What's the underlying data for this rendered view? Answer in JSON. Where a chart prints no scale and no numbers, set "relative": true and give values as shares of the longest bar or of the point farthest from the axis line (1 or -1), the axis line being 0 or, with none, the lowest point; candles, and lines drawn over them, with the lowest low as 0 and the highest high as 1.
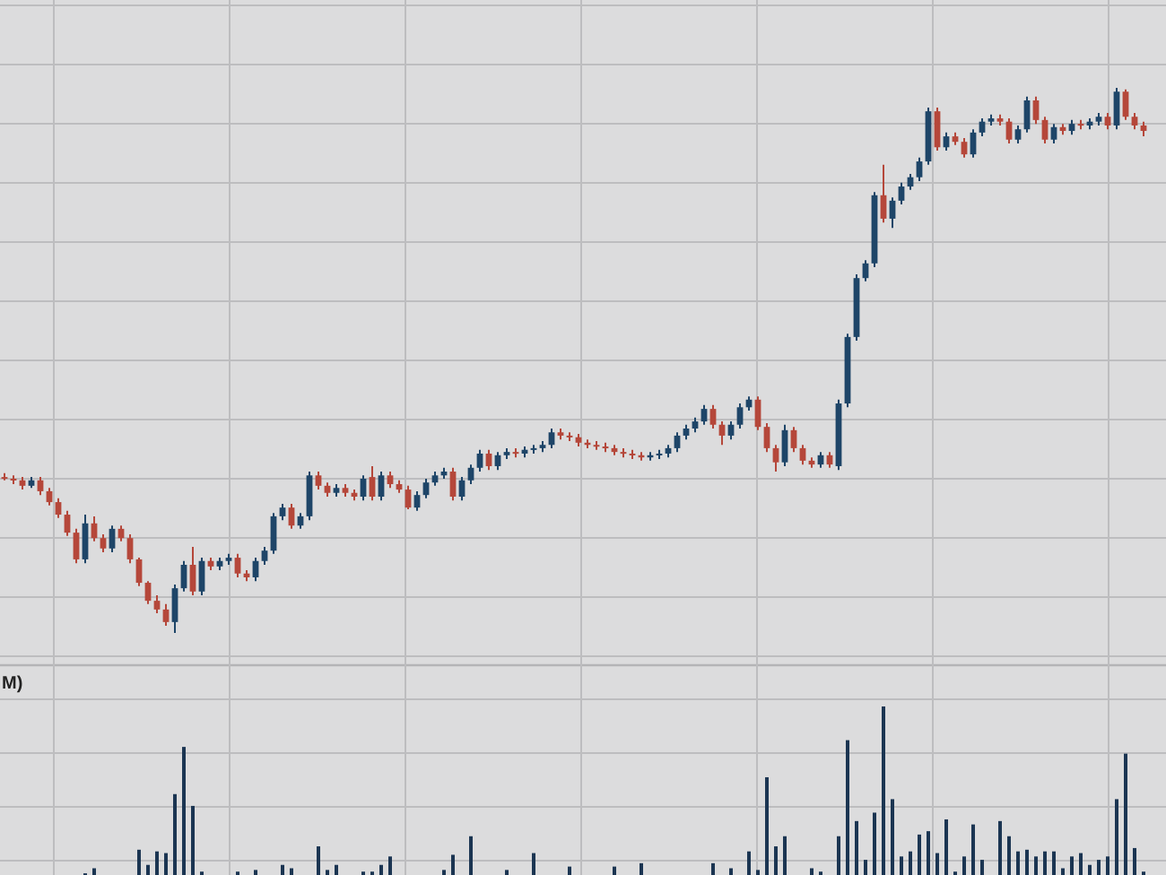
{
  "chart_data": [
    {
      "type": "candlestick",
      "relative": true,
      "grid": true,
      "tick_labels": false,
      "categories": [
        null,
        null,
        null,
        null,
        null,
        null,
        null,
        null,
        null,
        null,
        null,
        null,
        null,
        null,
        null,
        null,
        null,
        null,
        null,
        null,
        null,
        null,
        null,
        null,
        null,
        null,
        null,
        null,
        null,
        null,
        null,
        null,
        null,
        null,
        null,
        null,
        null,
        null,
        null,
        null,
        null,
        null,
        null,
        null,
        null,
        null,
        null,
        null,
        null,
        null,
        null,
        null,
        null,
        null,
        null,
        null,
        null,
        null,
        null,
        null,
        null,
        null,
        null,
        null,
        null,
        null,
        null,
        null,
        null,
        null,
        null,
        null,
        null,
        null,
        null,
        null,
        null,
        null,
        null,
        null,
        null,
        null,
        null,
        null,
        null,
        null,
        null,
        null,
        null,
        null,
        null,
        null,
        null,
        null,
        null,
        null,
        null,
        null,
        null,
        null,
        null,
        null,
        null,
        null,
        null,
        null,
        null,
        null,
        null,
        null,
        null,
        null,
        null,
        null,
        null,
        null,
        null,
        null,
        null,
        null,
        null,
        null,
        null,
        null,
        null,
        null,
        null,
        null
      ],
      "ohlc": [
        [
          0.286,
          0.293,
          0.28,
          0.283
        ],
        [
          0.283,
          0.289,
          0.273,
          0.28
        ],
        [
          0.28,
          0.286,
          0.263,
          0.27
        ],
        [
          0.27,
          0.286,
          0.266,
          0.28
        ],
        [
          0.28,
          0.286,
          0.253,
          0.26
        ],
        [
          0.26,
          0.266,
          0.234,
          0.24
        ],
        [
          0.24,
          0.247,
          0.211,
          0.217
        ],
        [
          0.217,
          0.224,
          0.178,
          0.184
        ],
        [
          0.184,
          0.191,
          0.128,
          0.135
        ],
        [
          0.135,
          0.217,
          0.128,
          0.201
        ],
        [
          0.201,
          0.214,
          0.168,
          0.174
        ],
        [
          0.174,
          0.181,
          0.148,
          0.155
        ],
        [
          0.155,
          0.197,
          0.148,
          0.191
        ],
        [
          0.191,
          0.197,
          0.168,
          0.174
        ],
        [
          0.174,
          0.181,
          0.128,
          0.135
        ],
        [
          0.135,
          0.138,
          0.086,
          0.092
        ],
        [
          0.092,
          0.095,
          0.053,
          0.059
        ],
        [
          0.059,
          0.069,
          0.036,
          0.043
        ],
        [
          0.043,
          0.053,
          0.013,
          0.02
        ],
        [
          0.02,
          0.089,
          0,
          0.082
        ],
        [
          0.082,
          0.132,
          0.076,
          0.125
        ],
        [
          0.125,
          0.158,
          0.069,
          0.076
        ],
        [
          0.076,
          0.138,
          0.069,
          0.132
        ],
        [
          0.132,
          0.138,
          0.115,
          0.122
        ],
        [
          0.122,
          0.138,
          0.115,
          0.132
        ],
        [
          0.132,
          0.145,
          0.125,
          0.138
        ],
        [
          0.138,
          0.145,
          0.102,
          0.109
        ],
        [
          0.109,
          0.115,
          0.095,
          0.102
        ],
        [
          0.102,
          0.138,
          0.095,
          0.132
        ],
        [
          0.132,
          0.158,
          0.125,
          0.151
        ],
        [
          0.151,
          0.22,
          0.145,
          0.214
        ],
        [
          0.214,
          0.237,
          0.207,
          0.23
        ],
        [
          0.23,
          0.237,
          0.191,
          0.197
        ],
        [
          0.197,
          0.22,
          0.191,
          0.214
        ],
        [
          0.214,
          0.296,
          0.207,
          0.289
        ],
        [
          0.289,
          0.296,
          0.263,
          0.27
        ],
        [
          0.27,
          0.276,
          0.25,
          0.257
        ],
        [
          0.257,
          0.273,
          0.25,
          0.266
        ],
        [
          0.266,
          0.273,
          0.25,
          0.257
        ],
        [
          0.257,
          0.263,
          0.243,
          0.25
        ],
        [
          0.25,
          0.289,
          0.243,
          0.283
        ],
        [
          0.286,
          0.306,
          0.243,
          0.25
        ],
        [
          0.25,
          0.296,
          0.243,
          0.289
        ],
        [
          0.289,
          0.296,
          0.266,
          0.273
        ],
        [
          0.273,
          0.28,
          0.257,
          0.263
        ],
        [
          0.263,
          0.27,
          0.227,
          0.23
        ],
        [
          0.23,
          0.26,
          0.224,
          0.253
        ],
        [
          0.253,
          0.283,
          0.247,
          0.276
        ],
        [
          0.276,
          0.296,
          0.27,
          0.289
        ],
        [
          0.289,
          0.303,
          0.283,
          0.296
        ],
        [
          0.296,
          0.303,
          0.243,
          0.25
        ],
        [
          0.25,
          0.286,
          0.243,
          0.28
        ],
        [
          0.28,
          0.309,
          0.273,
          0.303
        ],
        [
          0.303,
          0.336,
          0.296,
          0.329
        ],
        [
          0.329,
          0.336,
          0.299,
          0.306
        ],
        [
          0.306,
          0.332,
          0.299,
          0.326
        ],
        [
          0.326,
          0.339,
          0.319,
          0.332
        ],
        [
          0.332,
          0.339,
          0.322,
          0.329
        ],
        [
          0.329,
          0.342,
          0.322,
          0.336
        ],
        [
          0.336,
          0.345,
          0.329,
          0.339
        ],
        [
          0.339,
          0.352,
          0.332,
          0.345
        ],
        [
          0.345,
          0.375,
          0.339,
          0.368
        ],
        [
          0.368,
          0.375,
          0.355,
          0.362
        ],
        [
          0.362,
          0.368,
          0.352,
          0.359
        ],
        [
          0.359,
          0.365,
          0.342,
          0.349
        ],
        [
          0.349,
          0.355,
          0.339,
          0.345
        ],
        [
          0.345,
          0.352,
          0.336,
          0.342
        ],
        [
          0.342,
          0.349,
          0.332,
          0.339
        ],
        [
          0.339,
          0.345,
          0.326,
          0.332
        ],
        [
          0.332,
          0.339,
          0.322,
          0.329
        ],
        [
          0.329,
          0.336,
          0.319,
          0.326
        ],
        [
          0.326,
          0.332,
          0.316,
          0.322
        ],
        [
          0.322,
          0.332,
          0.316,
          0.326
        ],
        [
          0.326,
          0.336,
          0.319,
          0.329
        ],
        [
          0.329,
          0.345,
          0.322,
          0.339
        ],
        [
          0.339,
          0.368,
          0.332,
          0.362
        ],
        [
          0.362,
          0.382,
          0.355,
          0.375
        ],
        [
          0.375,
          0.395,
          0.368,
          0.388
        ],
        [
          0.388,
          0.418,
          0.382,
          0.411
        ],
        [
          0.411,
          0.418,
          0.375,
          0.382
        ],
        [
          0.382,
          0.388,
          0.345,
          0.362
        ],
        [
          0.362,
          0.388,
          0.355,
          0.382
        ],
        [
          0.382,
          0.421,
          0.375,
          0.414
        ],
        [
          0.414,
          0.434,
          0.408,
          0.428
        ],
        [
          0.428,
          0.434,
          0.372,
          0.378
        ],
        [
          0.378,
          0.385,
          0.332,
          0.339
        ],
        [
          0.339,
          0.345,
          0.296,
          0.313
        ],
        [
          0.313,
          0.382,
          0.306,
          0.372
        ],
        [
          0.372,
          0.378,
          0.332,
          0.339
        ],
        [
          0.339,
          0.345,
          0.309,
          0.316
        ],
        [
          0.316,
          0.322,
          0.303,
          0.309
        ],
        [
          0.309,
          0.332,
          0.303,
          0.326
        ],
        [
          0.326,
          0.332,
          0.303,
          0.309
        ],
        [
          0.306,
          0.428,
          0.299,
          0.421
        ],
        [
          0.421,
          0.549,
          0.414,
          0.543
        ],
        [
          0.543,
          0.658,
          0.536,
          0.651
        ],
        [
          0.651,
          0.684,
          0.645,
          0.678
        ],
        [
          0.678,
          0.809,
          0.671,
          0.803
        ],
        [
          0.803,
          0.859,
          0.753,
          0.76
        ],
        [
          0.76,
          0.799,
          0.743,
          0.793
        ],
        [
          0.793,
          0.826,
          0.786,
          0.819
        ],
        [
          0.819,
          0.842,
          0.813,
          0.836
        ],
        [
          0.836,
          0.872,
          0.829,
          0.865
        ],
        [
          0.865,
          0.964,
          0.859,
          0.957
        ],
        [
          0.957,
          0.964,
          0.885,
          0.891
        ],
        [
          0.891,
          0.918,
          0.885,
          0.911
        ],
        [
          0.911,
          0.918,
          0.895,
          0.901
        ],
        [
          0.901,
          0.908,
          0.872,
          0.878
        ],
        [
          0.878,
          0.924,
          0.872,
          0.918
        ],
        [
          0.918,
          0.944,
          0.911,
          0.938
        ],
        [
          0.938,
          0.951,
          0.931,
          0.944
        ],
        [
          0.944,
          0.951,
          0.931,
          0.938
        ],
        [
          0.938,
          0.944,
          0.898,
          0.905
        ],
        [
          0.905,
          0.931,
          0.898,
          0.924
        ],
        [
          0.924,
          0.984,
          0.918,
          0.977
        ],
        [
          0.977,
          0.984,
          0.934,
          0.941
        ],
        [
          0.941,
          0.947,
          0.898,
          0.905
        ],
        [
          0.905,
          0.934,
          0.898,
          0.928
        ],
        [
          0.928,
          0.934,
          0.914,
          0.921
        ],
        [
          0.921,
          0.941,
          0.914,
          0.934
        ],
        [
          0.934,
          0.941,
          0.924,
          0.931
        ],
        [
          0.931,
          0.944,
          0.924,
          0.938
        ],
        [
          0.938,
          0.954,
          0.931,
          0.947
        ],
        [
          0.947,
          0.954,
          0.924,
          0.931
        ],
        [
          0.931,
          1,
          0.924,
          0.993
        ],
        [
          0.993,
          0.997,
          0.941,
          0.947
        ],
        [
          0.947,
          0.954,
          0.924,
          0.931
        ],
        [
          0.931,
          0.938,
          0.911,
          0.921
        ]
      ],
      "colors": [
        "#b5473a",
        "#b5473a",
        "#b5473a",
        "#1e4568",
        "#b5473a",
        "#b5473a",
        "#b5473a",
        "#b5473a",
        "#b5473a",
        "#1e4568",
        "#b5473a",
        "#b5473a",
        "#1e4568",
        "#b5473a",
        "#b5473a",
        "#b5473a",
        "#b5473a",
        "#b5473a",
        "#b5473a",
        "#1e4568",
        "#1e4568",
        "#b5473a",
        "#1e4568",
        "#b5473a",
        "#1e4568",
        "#1e4568",
        "#b5473a",
        "#b5473a",
        "#1e4568",
        "#1e4568",
        "#1e4568",
        "#1e4568",
        "#b5473a",
        "#1e4568",
        "#1e4568",
        "#b5473a",
        "#b5473a",
        "#1e4568",
        "#b5473a",
        "#b5473a",
        "#1e4568",
        "#b5473a",
        "#1e4568",
        "#b5473a",
        "#b5473a",
        "#b5473a",
        "#1e4568",
        "#1e4568",
        "#1e4568",
        "#1e4568",
        "#b5473a",
        "#1e4568",
        "#1e4568",
        "#1e4568",
        "#b5473a",
        "#1e4568",
        "#1e4568",
        "#b5473a",
        "#1e4568",
        "#1e4568",
        "#1e4568",
        "#1e4568",
        "#b5473a",
        "#b5473a",
        "#b5473a",
        "#b5473a",
        "#b5473a",
        "#b5473a",
        "#b5473a",
        "#b5473a",
        "#b5473a",
        "#b5473a",
        "#1e4568",
        "#1e4568",
        "#1e4568",
        "#1e4568",
        "#1e4568",
        "#1e4568",
        "#1e4568",
        "#b5473a",
        "#b5473a",
        "#1e4568",
        "#1e4568",
        "#1e4568",
        "#b5473a",
        "#b5473a",
        "#b5473a",
        "#1e4568",
        "#b5473a",
        "#b5473a",
        "#b5473a",
        "#1e4568",
        "#b5473a",
        "#1e4568",
        "#1e4568",
        "#1e4568",
        "#1e4568",
        "#1e4568",
        "#b5473a",
        "#1e4568",
        "#1e4568",
        "#1e4568",
        "#1e4568",
        "#1e4568",
        "#b5473a",
        "#1e4568",
        "#b5473a",
        "#b5473a",
        "#1e4568",
        "#1e4568",
        "#1e4568",
        "#b5473a",
        "#b5473a",
        "#1e4568",
        "#1e4568",
        "#b5473a",
        "#b5473a",
        "#1e4568",
        "#b5473a",
        "#1e4568",
        "#b5473a",
        "#1e4568",
        "#1e4568",
        "#b5473a",
        "#1e4568",
        "#b5473a",
        "#b5473a",
        "#b5473a"
      ]
    },
    {
      "type": "bar",
      "title": "M)",
      "relative": true,
      "grid": true,
      "tick_labels": false,
      "color": "#1b3552",
      "categories": [
        null,
        null,
        null,
        null,
        null,
        null,
        null,
        null,
        null,
        null,
        null,
        null,
        null,
        null,
        null,
        null,
        null,
        null,
        null,
        null,
        null,
        null,
        null,
        null,
        null,
        null,
        null,
        null,
        null,
        null,
        null,
        null,
        null,
        null,
        null,
        null,
        null,
        null,
        null,
        null,
        null,
        null,
        null,
        null,
        null,
        null,
        null,
        null,
        null,
        null,
        null,
        null,
        null,
        null,
        null,
        null,
        null,
        null,
        null,
        null,
        null,
        null,
        null,
        null,
        null,
        null,
        null,
        null,
        null,
        null,
        null,
        null,
        null,
        null,
        null,
        null,
        null,
        null,
        null,
        null,
        null,
        null,
        null,
        null,
        null,
        null,
        null,
        null,
        null,
        null,
        null,
        null,
        null,
        null,
        null,
        null,
        null,
        null,
        null,
        null,
        null,
        null,
        null,
        null,
        null,
        null,
        null,
        null,
        null,
        null,
        null,
        null,
        null,
        null,
        null,
        null,
        null,
        null,
        null,
        null,
        null,
        null,
        null,
        null,
        null,
        null,
        null,
        null
      ],
      "values": [
        0,
        0,
        0,
        0,
        0,
        0,
        0,
        0,
        0,
        0.01,
        0.04,
        0,
        0,
        0,
        0,
        0.15,
        0.06,
        0.14,
        0.13,
        0.48,
        0.76,
        0.41,
        0.02,
        0,
        0,
        0,
        0.02,
        0,
        0.03,
        0,
        0,
        0.06,
        0.04,
        0,
        0,
        0.17,
        0.03,
        0.06,
        0,
        0,
        0.02,
        0.02,
        0.06,
        0.11,
        0,
        0,
        0,
        0,
        0,
        0.03,
        0.12,
        0,
        0.23,
        0,
        0,
        0,
        0.03,
        0,
        0,
        0.13,
        0,
        0,
        0,
        0.05,
        0,
        0,
        0,
        0,
        0.05,
        0,
        0,
        0.07,
        0,
        0,
        0,
        0,
        0,
        0,
        0,
        0.07,
        0,
        0.04,
        0,
        0.14,
        0.03,
        0.58,
        0.17,
        0.23,
        0,
        0,
        0.04,
        0.02,
        0,
        0.23,
        0.8,
        0.32,
        0.09,
        0.37,
        1,
        0.45,
        0.11,
        0.14,
        0.24,
        0.26,
        0.13,
        0.33,
        0.02,
        0.11,
        0.3,
        0.09,
        0,
        0.32,
        0.23,
        0.14,
        0.15,
        0.11,
        0.14,
        0.14,
        0.04,
        0.11,
        0.13,
        0.06,
        0.09,
        0.11,
        0.45,
        0.72,
        0.16,
        0.02
      ]
    }
  ]
}
